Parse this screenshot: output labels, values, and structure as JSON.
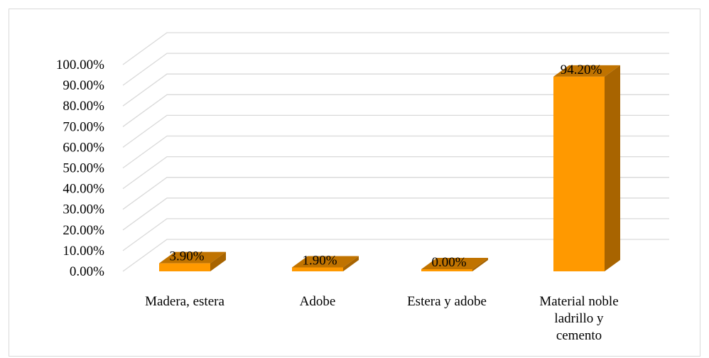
{
  "chart_data": {
    "type": "bar",
    "title": "",
    "xlabel": "",
    "ylabel": "",
    "categories": [
      [
        "Madera, estera"
      ],
      [
        "Adobe"
      ],
      [
        "Estera y adobe"
      ],
      [
        "Material noble",
        "ladrillo y",
        "cemento"
      ]
    ],
    "values": [
      3.9,
      1.9,
      0.0,
      94.2
    ],
    "data_labels": [
      "3.90%",
      "1.90%",
      "0.00%",
      "94.20%"
    ],
    "y_ticks": [
      "0.00%",
      "10.00%",
      "20.00%",
      "30.00%",
      "40.00%",
      "50.00%",
      "60.00%",
      "70.00%",
      "80.00%",
      "90.00%",
      "100.00%"
    ],
    "ylim": [
      0,
      100
    ],
    "grid": true,
    "legend": "none",
    "style": "3d-column",
    "colors": {
      "bar_front": "#ff9900",
      "bar_top": "#c07300",
      "bar_side": "#a86400",
      "gridline": "#d9d9d9",
      "frame": "#d9d9d9"
    }
  }
}
